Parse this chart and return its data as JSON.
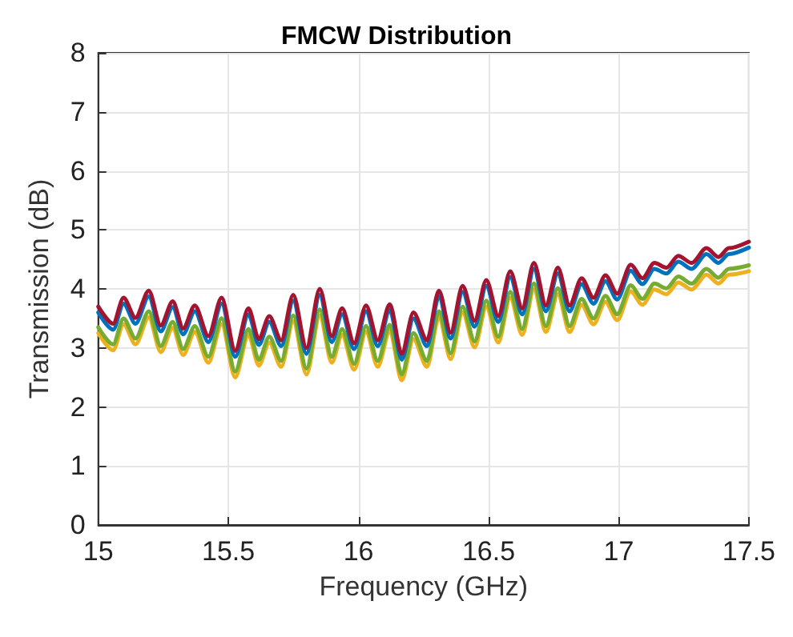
{
  "chart_data": {
    "type": "line",
    "title": "FMCW Distribution",
    "xlabel": "Frequency (GHz)",
    "ylabel": "Transmission (dB)",
    "x": [
      15.0,
      15.057,
      15.097,
      15.143,
      15.194,
      15.24,
      15.286,
      15.326,
      15.371,
      15.423,
      15.474,
      15.526,
      15.577,
      15.617,
      15.657,
      15.703,
      15.749,
      15.8,
      15.851,
      15.897,
      15.937,
      15.983,
      16.029,
      16.074,
      16.12,
      16.166,
      16.211,
      16.263,
      16.309,
      16.354,
      16.4,
      16.446,
      16.491,
      16.537,
      16.583,
      16.629,
      16.674,
      16.72,
      16.766,
      16.811,
      16.857,
      16.903,
      16.949,
      16.994,
      17.046,
      17.091,
      17.137,
      17.183,
      17.229,
      17.28,
      17.337,
      17.383,
      17.423,
      17.5
    ],
    "series": [
      {
        "color": "#edb120",
        "values": [
          3.25,
          2.96,
          3.4,
          3.06,
          3.52,
          2.93,
          3.34,
          2.88,
          3.27,
          2.75,
          3.4,
          2.5,
          3.22,
          2.7,
          3.09,
          2.68,
          3.45,
          2.55,
          3.55,
          2.75,
          3.22,
          2.63,
          3.27,
          2.68,
          3.29,
          2.45,
          3.15,
          2.68,
          3.52,
          2.81,
          3.6,
          3.01,
          3.7,
          3.09,
          3.85,
          3.22,
          3.99,
          3.27,
          3.91,
          3.27,
          3.73,
          3.4,
          3.78,
          3.47,
          3.96,
          3.73,
          3.99,
          3.91,
          4.11,
          3.99,
          4.24,
          4.09,
          4.24,
          4.3
        ]
      },
      {
        "color": "#77ac30",
        "values": [
          3.35,
          3.06,
          3.5,
          3.16,
          3.62,
          3.03,
          3.44,
          2.98,
          3.37,
          2.85,
          3.5,
          2.6,
          3.32,
          2.8,
          3.19,
          2.78,
          3.55,
          2.65,
          3.65,
          2.85,
          3.32,
          2.73,
          3.37,
          2.78,
          3.39,
          2.55,
          3.25,
          2.78,
          3.62,
          2.91,
          3.7,
          3.11,
          3.8,
          3.19,
          3.95,
          3.32,
          4.09,
          3.37,
          4.01,
          3.37,
          3.83,
          3.5,
          3.88,
          3.57,
          4.06,
          3.83,
          4.09,
          4.01,
          4.21,
          4.09,
          4.34,
          4.19,
          4.34,
          4.4
        ]
      },
      {
        "color": "#0072bd",
        "values": [
          3.6,
          3.31,
          3.75,
          3.41,
          3.87,
          3.28,
          3.69,
          3.23,
          3.62,
          3.1,
          3.75,
          2.85,
          3.57,
          3.05,
          3.44,
          3.03,
          3.8,
          2.9,
          3.9,
          3.1,
          3.57,
          2.98,
          3.62,
          3.03,
          3.64,
          2.8,
          3.5,
          3.03,
          3.87,
          3.16,
          3.95,
          3.36,
          4.05,
          3.44,
          4.2,
          3.57,
          4.34,
          3.62,
          4.26,
          3.62,
          4.08,
          3.75,
          4.13,
          3.82,
          4.31,
          4.08,
          4.34,
          4.26,
          4.46,
          4.34,
          4.59,
          4.44,
          4.59,
          4.7
        ]
      },
      {
        "color": "#a2142f",
        "values": [
          3.7,
          3.41,
          3.85,
          3.51,
          3.97,
          3.38,
          3.79,
          3.33,
          3.72,
          3.2,
          3.85,
          2.95,
          3.67,
          3.15,
          3.54,
          3.13,
          3.9,
          3.0,
          4.0,
          3.2,
          3.67,
          3.08,
          3.72,
          3.13,
          3.74,
          2.9,
          3.6,
          3.13,
          3.97,
          3.26,
          4.05,
          3.46,
          4.15,
          3.54,
          4.3,
          3.67,
          4.44,
          3.72,
          4.36,
          3.72,
          4.18,
          3.85,
          4.23,
          3.92,
          4.41,
          4.18,
          4.44,
          4.36,
          4.56,
          4.44,
          4.69,
          4.54,
          4.69,
          4.8
        ]
      }
    ],
    "xlim": [
      15,
      17.5
    ],
    "xticks": [
      15,
      15.5,
      16,
      16.5,
      17,
      17.5
    ],
    "ylim": [
      0,
      8
    ],
    "yticks": [
      0,
      1,
      2,
      3,
      4,
      5,
      6,
      7,
      8
    ],
    "grid": true
  }
}
